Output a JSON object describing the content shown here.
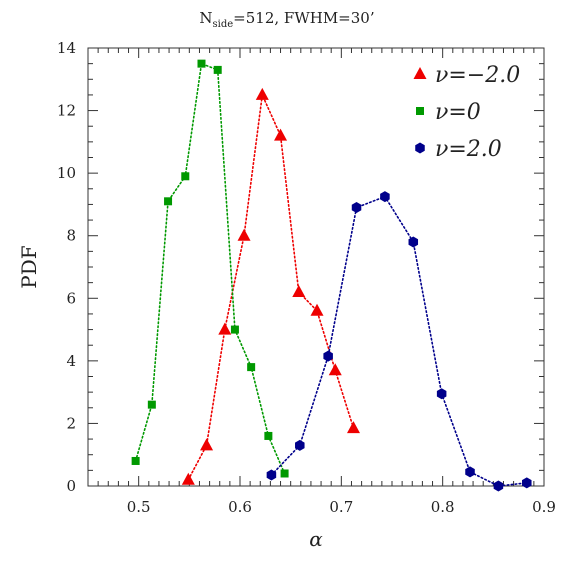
{
  "chart_data": {
    "type": "line",
    "title": "N_side=512, FWHM=30'",
    "title_parts": {
      "main": "N",
      "sub": "side",
      "rest": "=512, FWHM=30’"
    },
    "xlabel": "α",
    "ylabel": "PDF",
    "xlim": [
      0.45,
      0.9
    ],
    "ylim": [
      0,
      14
    ],
    "xticks": [
      0.5,
      0.6,
      0.7,
      0.8,
      0.9
    ],
    "xtick_labels": [
      "0.5",
      "0.6",
      "0.7",
      "0.8",
      "0.9"
    ],
    "yticks": [
      0,
      2,
      4,
      6,
      8,
      10,
      12,
      14
    ],
    "ytick_labels": [
      "0",
      "2",
      "4",
      "6",
      "8",
      "10",
      "12",
      "14"
    ],
    "grid": false,
    "legend_position": "top-right",
    "series": [
      {
        "name": "ν=−2.0",
        "color": "#ee0000",
        "marker": "triangle",
        "x": [
          0.549,
          0.567,
          0.585,
          0.604,
          0.622,
          0.64,
          0.658,
          0.676,
          0.694,
          0.712
        ],
        "y": [
          0.2,
          1.3,
          5.0,
          8.0,
          12.5,
          11.2,
          6.2,
          5.6,
          3.7,
          1.85
        ]
      },
      {
        "name": "ν=0",
        "color": "#009900",
        "marker": "square",
        "x": [
          0.497,
          0.513,
          0.529,
          0.546,
          0.562,
          0.578,
          0.595,
          0.611,
          0.628,
          0.644
        ],
        "y": [
          0.8,
          2.6,
          9.1,
          9.9,
          13.5,
          13.3,
          5.0,
          3.8,
          1.6,
          0.4
        ]
      },
      {
        "name": "ν=2.0",
        "color": "#00008b",
        "marker": "hexagon",
        "x": [
          0.631,
          0.659,
          0.687,
          0.715,
          0.743,
          0.771,
          0.799,
          0.827,
          0.855,
          0.883
        ],
        "y": [
          0.35,
          1.3,
          4.15,
          8.9,
          9.25,
          7.8,
          2.95,
          0.45,
          0.0,
          0.1
        ]
      }
    ]
  }
}
